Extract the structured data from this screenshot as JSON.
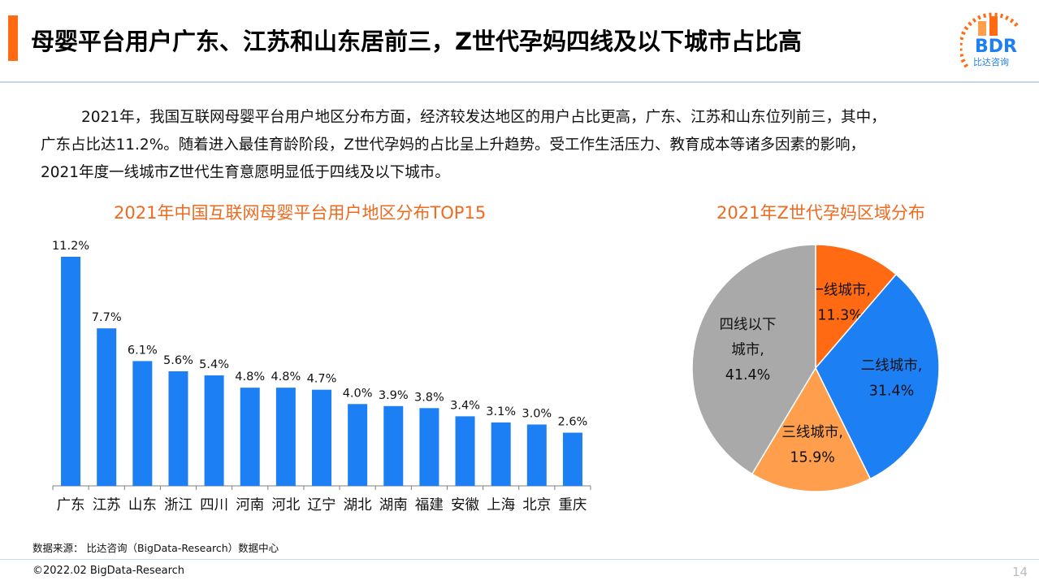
{
  "header": {
    "title": "母婴平台用户广东、江苏和山东居前三，Z世代孕妈四线及以下城市占比高",
    "logo_text": "BDR",
    "logo_subtext": "比达咨询"
  },
  "body": {
    "paragraph_lines": [
      "2021年，我国互联网母婴平台用户地区分布方面，经济较发达地区的用户占比更高，广东、江苏和山东位列前三，其中，",
      "广东占比达11.2%。随着进入最佳育龄阶段，Z世代孕妈的占比呈上升趋势。受工作生活压力、教育成本等诸多因素的影响，",
      "2021年度一线城市Z世代生育意愿明显低于四线及以下城市。"
    ]
  },
  "footer": {
    "source": "数据来源： 比达咨询（BigData-Research）数据中心",
    "copyright": "©2022.02 BigData-Research",
    "page_number": "14"
  },
  "colors": {
    "accent": "#ff6a13",
    "bar": "#1c7ff4",
    "chart_title": "#f06a1e"
  },
  "chart_data": [
    {
      "type": "bar",
      "title": "2021年中国互联网母婴平台用户地区分布TOP15",
      "categories": [
        "广东",
        "江苏",
        "山东",
        "浙江",
        "四川",
        "河南",
        "河北",
        "辽宁",
        "湖北",
        "湖南",
        "福建",
        "安徽",
        "上海",
        "北京",
        "重庆"
      ],
      "values": [
        11.2,
        7.7,
        6.1,
        5.6,
        5.4,
        4.8,
        4.8,
        4.7,
        4.0,
        3.9,
        3.8,
        3.4,
        3.1,
        3.0,
        2.6
      ],
      "value_labels": [
        "11.2%",
        "7.7%",
        "6.1%",
        "5.6%",
        "5.4%",
        "4.8%",
        "4.8%",
        "4.7%",
        "4.0%",
        "3.9%",
        "3.8%",
        "3.4%",
        "3.1%",
        "3.0%",
        "2.6%"
      ],
      "xlabel": "",
      "ylabel": "",
      "ylim": [
        0,
        11.2
      ],
      "grid": false,
      "color": "#1c7ff4"
    },
    {
      "type": "pie",
      "title": "2021年Z世代孕妈区域分布",
      "slices": [
        {
          "label": "一线城市,",
          "value": 11.3,
          "value_label": "11.3%",
          "color": "#ff6a13"
        },
        {
          "label": "二线城市,",
          "value": 31.4,
          "value_label": "31.4%",
          "color": "#1c7ff4"
        },
        {
          "label": "三线城市,",
          "value": 15.9,
          "value_label": "15.9%",
          "color": "#ff9f4e"
        },
        {
          "label_lines": [
            "四线以下",
            "城市,"
          ],
          "value": 41.4,
          "value_label": "41.4%",
          "color": "#a9a9a9"
        }
      ]
    }
  ]
}
